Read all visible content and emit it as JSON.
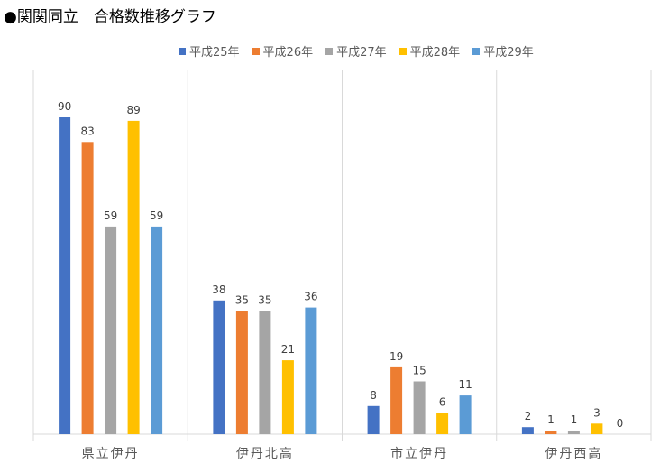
{
  "title": "●関関同立　合格数推移グラフ",
  "chart_data": {
    "type": "bar",
    "title": "●関関同立　合格数推移グラフ",
    "categories": [
      "県立伊丹",
      "伊丹北高",
      "市立伊丹",
      "伊丹西高"
    ],
    "series": [
      {
        "name": "平成25年",
        "color": "#4472C4",
        "values": [
          90,
          38,
          8,
          2
        ]
      },
      {
        "name": "平成26年",
        "color": "#ED7D31",
        "values": [
          83,
          35,
          19,
          1
        ]
      },
      {
        "name": "平成27年",
        "color": "#A5A5A5",
        "values": [
          59,
          35,
          15,
          1
        ]
      },
      {
        "name": "平成28年",
        "color": "#FFC000",
        "values": [
          89,
          21,
          6,
          3
        ]
      },
      {
        "name": "平成29年",
        "color": "#5B9BD5",
        "values": [
          59,
          36,
          11,
          0
        ]
      }
    ],
    "ylim": [
      0,
      100
    ],
    "grid": false,
    "legend": "top"
  }
}
